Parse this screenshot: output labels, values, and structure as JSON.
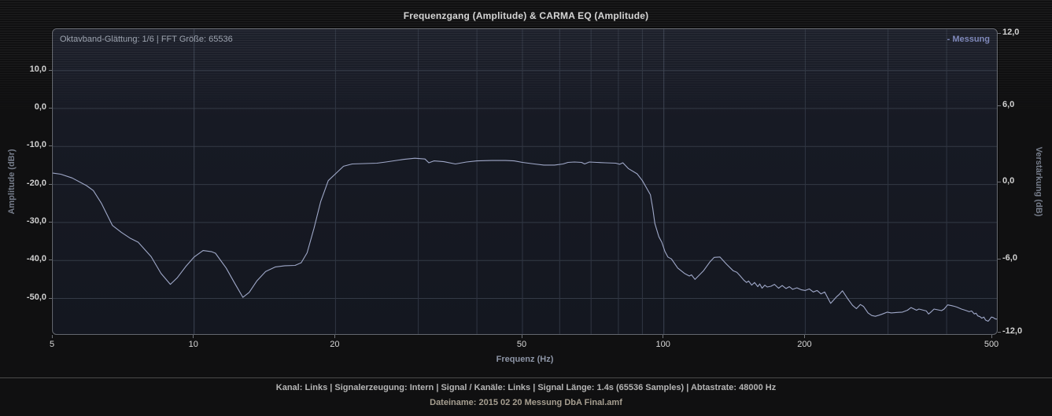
{
  "title": "Frequenzgang (Amplitude) & CARMA EQ (Amplitude)",
  "plot": {
    "info_label": "Oktavband-Glättung: 1/6 | FFT Größe: 65536",
    "legend_label": "- Messung",
    "legend_color": "#7c86b9"
  },
  "status": {
    "line1": "Kanal: Links  |  Signalerzeugung: Intern  |  Signal / Kanäle: Links  |  Signal Länge: 1.4s (65536 Samples)  |  Abtastrate: 48000 Hz",
    "line2": "Dateiname: 2015 02 20 Messung DbA Final.amf"
  },
  "chart_data": {
    "type": "line",
    "title": "Frequenzgang (Amplitude) & CARMA EQ (Amplitude)",
    "x_axis": {
      "label": "Frequenz (Hz)",
      "scale": "log",
      "range_hz": [
        5,
        516
      ],
      "ticks": [
        {
          "value": 5,
          "label": "5"
        },
        {
          "value": 10,
          "label": "10"
        },
        {
          "value": 20,
          "label": "20"
        },
        {
          "value": 50,
          "label": "50"
        },
        {
          "value": 100,
          "label": "100"
        },
        {
          "value": 200,
          "label": "200"
        },
        {
          "value": 500,
          "label": "500"
        }
      ]
    },
    "y_left_axis": {
      "label": "Amplitude (dBr)",
      "range": [
        -59.8,
        20.9
      ],
      "ticks": [
        {
          "value": 10,
          "label": "10,0"
        },
        {
          "value": 0,
          "label": "0,0"
        },
        {
          "value": -10,
          "label": "-10,0"
        },
        {
          "value": -20,
          "label": "-20,0"
        },
        {
          "value": -30,
          "label": "-30,0"
        },
        {
          "value": -40,
          "label": "-40,0"
        },
        {
          "value": -50,
          "label": "-50,0"
        }
      ]
    },
    "y_right_axis": {
      "label": "Verstärkung (dB)",
      "range": [
        -12,
        12
      ],
      "ticks": [
        {
          "value": 12,
          "label": "12,0"
        },
        {
          "value": 6,
          "label": "6,0"
        },
        {
          "value": 0,
          "label": "0,0"
        },
        {
          "value": -6,
          "label": "-6,0"
        },
        {
          "value": -12,
          "label": "-12,0"
        }
      ]
    },
    "grid": {
      "vertical_freqs_hz": [
        10,
        20,
        30,
        40,
        50,
        60,
        70,
        80,
        90,
        100,
        200,
        300,
        400
      ],
      "horizontal_dbr": [
        10,
        0,
        -10,
        -20,
        -30,
        -40,
        -50
      ]
    },
    "legend": [
      {
        "name": "Messung",
        "color": "#a6b0d2",
        "position": "top-right"
      }
    ],
    "series": [
      {
        "name": "Messung",
        "color": "#a6b0d2",
        "points_hz_dbr": [
          [
            5.0,
            -17.0
          ],
          [
            5.2,
            -17.3
          ],
          [
            5.5,
            -18.3
          ],
          [
            5.9,
            -20.3
          ],
          [
            6.1,
            -21.6
          ],
          [
            6.35,
            -25.0
          ],
          [
            6.7,
            -30.8
          ],
          [
            7.0,
            -32.6
          ],
          [
            7.3,
            -34.1
          ],
          [
            7.6,
            -35.2
          ],
          [
            8.1,
            -39.0
          ],
          [
            8.5,
            -43.4
          ],
          [
            8.9,
            -46.3
          ],
          [
            9.2,
            -44.6
          ],
          [
            9.6,
            -41.6
          ],
          [
            10.0,
            -39.1
          ],
          [
            10.45,
            -37.4
          ],
          [
            10.9,
            -37.7
          ],
          [
            11.1,
            -38.1
          ],
          [
            11.7,
            -42.0
          ],
          [
            12.2,
            -46.0
          ],
          [
            12.7,
            -49.7
          ],
          [
            13.1,
            -48.4
          ],
          [
            13.6,
            -45.4
          ],
          [
            14.2,
            -42.9
          ],
          [
            14.9,
            -41.7
          ],
          [
            15.6,
            -41.4
          ],
          [
            16.4,
            -41.3
          ],
          [
            16.9,
            -40.6
          ],
          [
            17.4,
            -38.0
          ],
          [
            18.0,
            -31.5
          ],
          [
            18.6,
            -24.5
          ],
          [
            19.3,
            -19.0
          ],
          [
            20.0,
            -17.2
          ],
          [
            20.8,
            -15.2
          ],
          [
            21.7,
            -14.6
          ],
          [
            23.0,
            -14.5
          ],
          [
            24.5,
            -14.4
          ],
          [
            25.6,
            -14.1
          ],
          [
            27.9,
            -13.4
          ],
          [
            29.5,
            -13.1
          ],
          [
            31.0,
            -13.3
          ],
          [
            31.6,
            -14.3
          ],
          [
            32.4,
            -13.8
          ],
          [
            34.0,
            -14.0
          ],
          [
            36.0,
            -14.6
          ],
          [
            38.0,
            -14.1
          ],
          [
            40.0,
            -13.8
          ],
          [
            43.0,
            -13.7
          ],
          [
            46.0,
            -13.7
          ],
          [
            48.0,
            -13.8
          ],
          [
            50.0,
            -14.2
          ],
          [
            53.0,
            -14.6
          ],
          [
            55.5,
            -14.9
          ],
          [
            58.5,
            -14.9
          ],
          [
            61.0,
            -14.6
          ],
          [
            62.5,
            -14.2
          ],
          [
            64.5,
            -14.1
          ],
          [
            66.8,
            -14.2
          ],
          [
            67.8,
            -14.6
          ],
          [
            69.4,
            -14.1
          ],
          [
            72.0,
            -14.2
          ],
          [
            75.0,
            -14.3
          ],
          [
            79.0,
            -14.4
          ],
          [
            80.5,
            -14.7
          ],
          [
            81.8,
            -14.3
          ],
          [
            84.0,
            -15.8
          ],
          [
            87.7,
            -17.2
          ],
          [
            90.0,
            -19.0
          ],
          [
            93.6,
            -22.7
          ],
          [
            94.7,
            -26.3
          ],
          [
            95.7,
            -30.3
          ],
          [
            97.6,
            -33.8
          ],
          [
            99.0,
            -35.2
          ],
          [
            100.5,
            -37.6
          ],
          [
            102.0,
            -39.1
          ],
          [
            103.8,
            -39.6
          ],
          [
            107.0,
            -42.0
          ],
          [
            110.6,
            -43.4
          ],
          [
            113.3,
            -44.1
          ],
          [
            114.5,
            -43.8
          ],
          [
            116.5,
            -45.0
          ],
          [
            121.5,
            -42.7
          ],
          [
            125.5,
            -40.3
          ],
          [
            128.0,
            -39.2
          ],
          [
            131.6,
            -39.1
          ],
          [
            136.0,
            -41.0
          ],
          [
            140.4,
            -42.7
          ],
          [
            143.0,
            -43.1
          ],
          [
            145.5,
            -44.1
          ],
          [
            148.0,
            -45.2
          ],
          [
            150.0,
            -45.8
          ],
          [
            151.5,
            -45.4
          ],
          [
            153.8,
            -46.5
          ],
          [
            156.0,
            -45.8
          ],
          [
            158.5,
            -46.9
          ],
          [
            160.0,
            -46.2
          ],
          [
            161.8,
            -47.3
          ],
          [
            164.0,
            -46.5
          ],
          [
            166.0,
            -47.0
          ],
          [
            169.0,
            -46.8
          ],
          [
            172.0,
            -46.3
          ],
          [
            175.5,
            -47.3
          ],
          [
            178.6,
            -46.6
          ],
          [
            182.0,
            -47.4
          ],
          [
            185.0,
            -46.9
          ],
          [
            188.0,
            -47.6
          ],
          [
            192.0,
            -47.2
          ],
          [
            196.0,
            -47.7
          ],
          [
            200.0,
            -47.9
          ],
          [
            204.0,
            -47.5
          ],
          [
            208.0,
            -48.3
          ],
          [
            212.0,
            -47.9
          ],
          [
            216.0,
            -48.8
          ],
          [
            220.0,
            -48.3
          ],
          [
            226.5,
            -51.3
          ],
          [
            233.0,
            -49.6
          ],
          [
            236.0,
            -49.0
          ],
          [
            240.0,
            -48.0
          ],
          [
            246.0,
            -50.0
          ],
          [
            252.0,
            -51.8
          ],
          [
            257.0,
            -52.7
          ],
          [
            262.0,
            -51.6
          ],
          [
            266.0,
            -52.1
          ],
          [
            272.0,
            -53.8
          ],
          [
            277.0,
            -54.5
          ],
          [
            282.0,
            -54.7
          ],
          [
            287.0,
            -54.4
          ],
          [
            292.0,
            -54.1
          ],
          [
            299.0,
            -53.6
          ],
          [
            305.0,
            -53.8
          ],
          [
            312.0,
            -53.7
          ],
          [
            322.0,
            -53.6
          ],
          [
            330.0,
            -53.1
          ],
          [
            336.0,
            -52.4
          ],
          [
            341.0,
            -52.8
          ],
          [
            345.0,
            -53.1
          ],
          [
            349.0,
            -52.8
          ],
          [
            352.0,
            -52.9
          ],
          [
            357.0,
            -53.1
          ],
          [
            362.0,
            -53.3
          ],
          [
            366.0,
            -54.1
          ],
          [
            371.0,
            -53.5
          ],
          [
            376.0,
            -52.8
          ],
          [
            383.0,
            -53.0
          ],
          [
            390.0,
            -53.2
          ],
          [
            395.0,
            -52.8
          ],
          [
            402.0,
            -51.7
          ],
          [
            406.0,
            -51.8
          ],
          [
            410.0,
            -51.9
          ],
          [
            416.0,
            -52.1
          ],
          [
            421.0,
            -52.3
          ],
          [
            430.0,
            -52.8
          ],
          [
            438.0,
            -53.1
          ],
          [
            447.0,
            -53.5
          ],
          [
            452.0,
            -53.3
          ],
          [
            458.0,
            -54.1
          ],
          [
            462.0,
            -53.9
          ],
          [
            466.0,
            -54.6
          ],
          [
            471.0,
            -54.8
          ],
          [
            475.0,
            -55.2
          ],
          [
            480.0,
            -54.9
          ],
          [
            484.0,
            -55.7
          ],
          [
            490.0,
            -56.0
          ],
          [
            494.0,
            -55.5
          ],
          [
            498.0,
            -54.9
          ],
          [
            502.0,
            -55.0
          ],
          [
            508.0,
            -55.4
          ],
          [
            515.0,
            -55.5
          ]
        ]
      }
    ]
  }
}
